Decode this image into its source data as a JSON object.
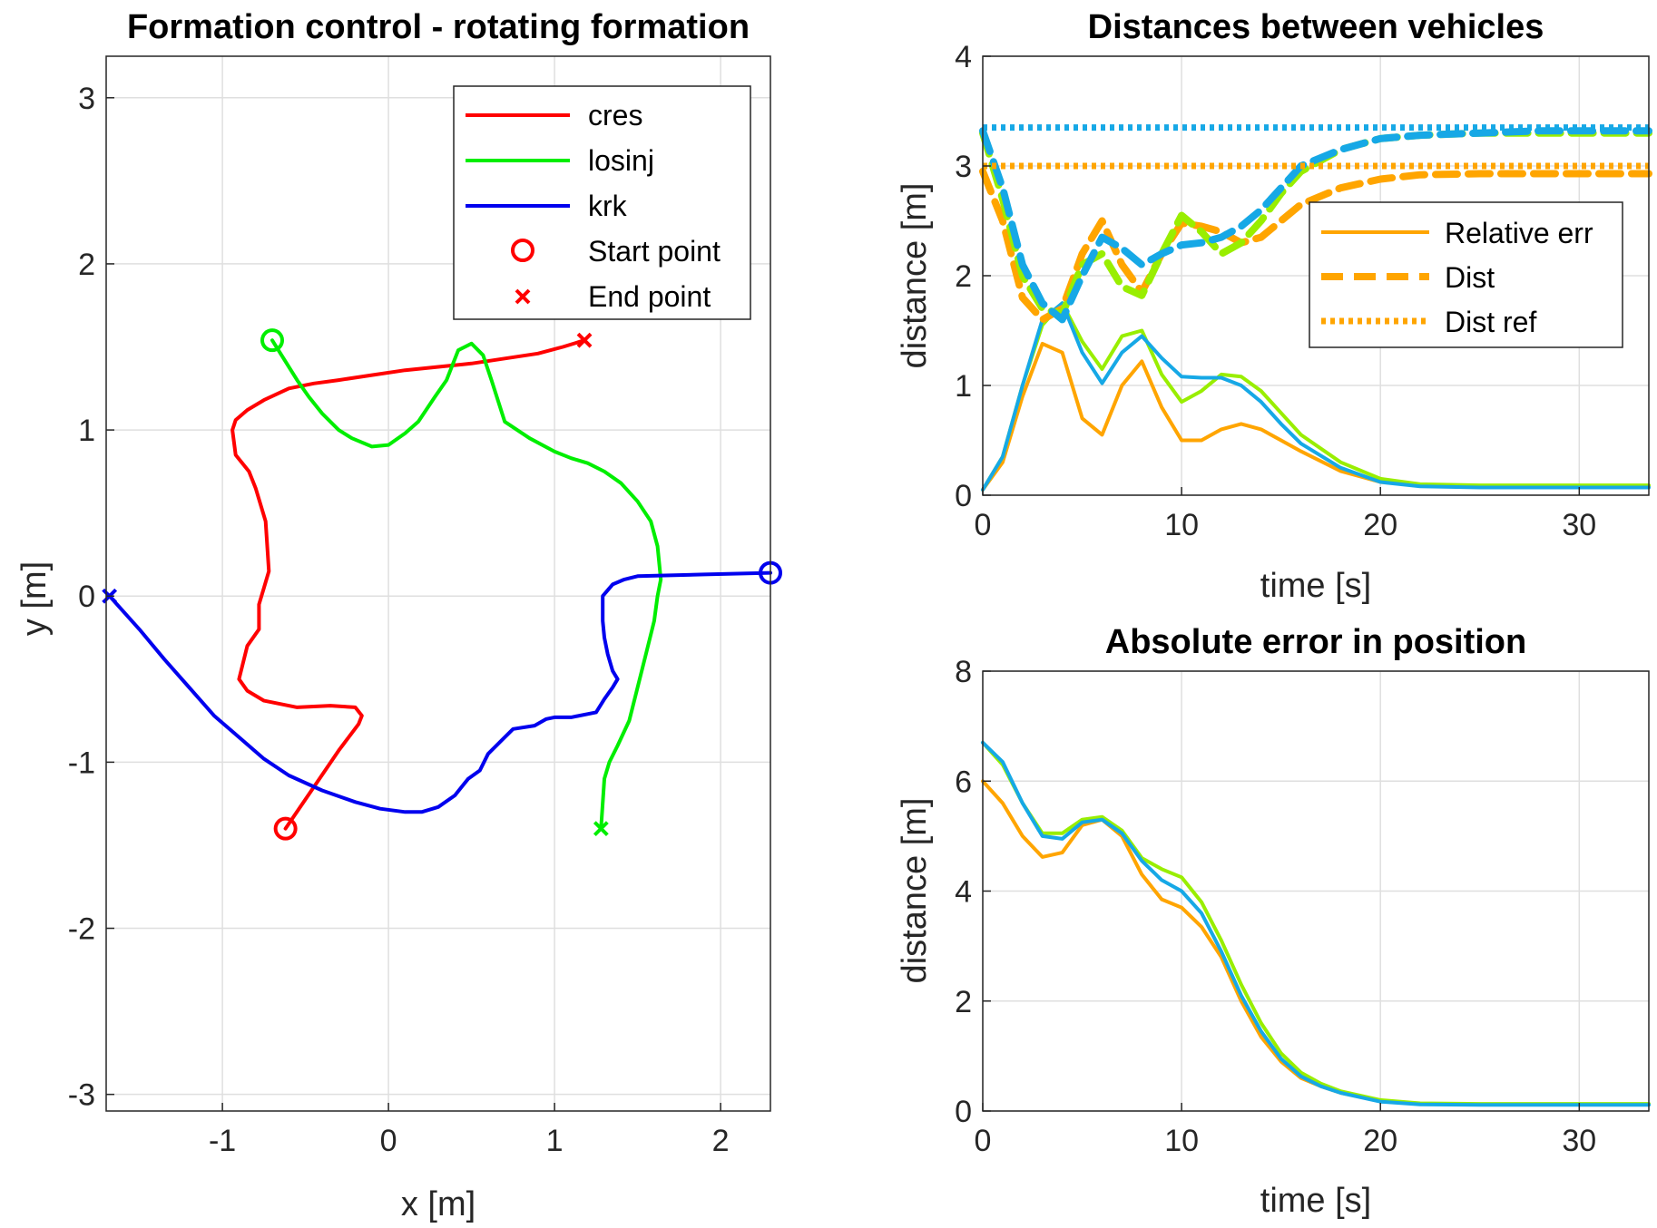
{
  "chart_data": [
    {
      "type": "line",
      "title": "Formation control - rotating formation",
      "xlabel": "x [m]",
      "ylabel": "y [m]",
      "xlim": [
        -1.7,
        2.3
      ],
      "ylim": [
        -3.1,
        3.25
      ],
      "xticks": [
        -1,
        0,
        1,
        2
      ],
      "yticks": [
        -3,
        -2,
        -1,
        0,
        1,
        2,
        3
      ],
      "grid": true,
      "legend": {
        "position": "top-right",
        "entries": [
          "cres",
          "losinj",
          "krk",
          "Start point",
          "End point"
        ]
      },
      "series": [
        {
          "name": "cres",
          "color": "#ff0000",
          "x": [
            -0.62,
            -0.45,
            -0.3,
            -0.18,
            -0.16,
            -0.2,
            -0.35,
            -0.55,
            -0.75,
            -0.85,
            -0.9,
            -0.85,
            -0.78,
            -0.78,
            -0.75,
            -0.72,
            -0.74,
            -0.8,
            -0.84,
            -0.92,
            -0.94,
            -0.92,
            -0.85,
            -0.75,
            -0.6,
            -0.45,
            -0.3,
            -0.1,
            0.1,
            0.3,
            0.5,
            0.7,
            0.9,
            1.05,
            1.18
          ],
          "y": [
            -1.4,
            -1.15,
            -0.93,
            -0.77,
            -0.72,
            -0.67,
            -0.66,
            -0.67,
            -0.63,
            -0.57,
            -0.5,
            -0.3,
            -0.2,
            -0.05,
            0.05,
            0.15,
            0.45,
            0.65,
            0.75,
            0.85,
            1.0,
            1.06,
            1.12,
            1.18,
            1.25,
            1.28,
            1.3,
            1.33,
            1.36,
            1.38,
            1.4,
            1.43,
            1.46,
            1.5,
            1.54
          ]
        },
        {
          "name": "losinj",
          "color": "#00ee00",
          "x": [
            -0.7,
            -0.55,
            -0.48,
            -0.4,
            -0.3,
            -0.22,
            -0.1,
            0.0,
            0.1,
            0.18,
            0.28,
            0.35,
            0.42,
            0.5,
            0.57,
            0.62,
            0.7,
            0.85,
            1.0,
            1.1,
            1.2,
            1.3,
            1.4,
            1.5,
            1.58,
            1.62,
            1.64,
            1.62,
            1.6,
            1.55,
            1.5,
            1.45,
            1.38,
            1.33,
            1.3,
            1.28
          ],
          "y": [
            1.54,
            1.3,
            1.2,
            1.1,
            1.0,
            0.95,
            0.9,
            0.91,
            0.98,
            1.05,
            1.2,
            1.3,
            1.48,
            1.52,
            1.45,
            1.3,
            1.05,
            0.95,
            0.87,
            0.83,
            0.8,
            0.75,
            0.68,
            0.57,
            0.45,
            0.3,
            0.1,
            0.0,
            -0.15,
            -0.35,
            -0.55,
            -0.75,
            -0.9,
            -1.0,
            -1.1,
            -1.4
          ]
        },
        {
          "name": "krk",
          "color": "#0000ee",
          "x": [
            2.3,
            1.9,
            1.5,
            1.42,
            1.35,
            1.29,
            1.29,
            1.3,
            1.32,
            1.35,
            1.38,
            1.35,
            1.3,
            1.25,
            1.1,
            1.0,
            0.95,
            0.88,
            0.75,
            0.7,
            0.6,
            0.55,
            0.48,
            0.4,
            0.3,
            0.2,
            0.1,
            -0.05,
            -0.2,
            -0.4,
            -0.6,
            -0.75,
            -0.9,
            -1.05,
            -1.2,
            -1.35,
            -1.5,
            -1.68
          ],
          "y": [
            0.14,
            0.13,
            0.12,
            0.1,
            0.07,
            0.0,
            -0.15,
            -0.25,
            -0.35,
            -0.45,
            -0.5,
            -0.55,
            -0.62,
            -0.7,
            -0.73,
            -0.73,
            -0.74,
            -0.78,
            -0.8,
            -0.85,
            -0.95,
            -1.05,
            -1.1,
            -1.2,
            -1.27,
            -1.3,
            -1.3,
            -1.28,
            -1.24,
            -1.17,
            -1.08,
            -0.98,
            -0.85,
            -0.72,
            -0.55,
            -0.38,
            -0.2,
            0.0
          ]
        }
      ],
      "markers": {
        "start": "circle",
        "end": "cross"
      }
    },
    {
      "type": "line",
      "title": "Distances between vehicles",
      "xlabel": "time [s]",
      "ylabel": "distance [m]",
      "xlim": [
        0,
        33.5
      ],
      "ylim": [
        0,
        4
      ],
      "xticks": [
        0,
        10,
        20,
        30
      ],
      "yticks": [
        0,
        1,
        2,
        3,
        4
      ],
      "grid": true,
      "legend": {
        "position": "top-right",
        "entries": [
          "Relative err",
          "Dist",
          "Dist ref"
        ]
      },
      "series": [
        {
          "name": "Relative err (orange)",
          "color": "#ffa500",
          "style": "solid",
          "x": [
            0,
            1,
            2,
            3,
            4,
            5,
            6,
            7,
            8,
            9,
            10,
            11,
            12,
            13,
            14,
            15,
            16,
            18,
            20,
            22,
            25,
            28,
            33.5
          ],
          "y": [
            0.05,
            0.3,
            0.9,
            1.38,
            1.3,
            0.7,
            0.55,
            1.0,
            1.22,
            0.8,
            0.5,
            0.5,
            0.6,
            0.65,
            0.6,
            0.5,
            0.4,
            0.22,
            0.12,
            0.09,
            0.08,
            0.08,
            0.08
          ]
        },
        {
          "name": "Relative err (lime)",
          "color": "#99ee00",
          "style": "solid",
          "x": [
            0,
            1,
            2,
            3,
            4,
            5,
            6,
            7,
            8,
            9,
            10,
            11,
            12,
            13,
            14,
            15,
            16,
            18,
            20,
            22,
            25,
            28,
            33.5
          ],
          "y": [
            0.05,
            0.35,
            1.0,
            1.55,
            1.75,
            1.4,
            1.15,
            1.45,
            1.5,
            1.1,
            0.85,
            0.95,
            1.1,
            1.08,
            0.95,
            0.75,
            0.55,
            0.3,
            0.15,
            0.1,
            0.09,
            0.09,
            0.09
          ]
        },
        {
          "name": "Relative err (sky)",
          "color": "#16a8e6",
          "style": "solid",
          "x": [
            0,
            1,
            2,
            3,
            4,
            5,
            6,
            7,
            8,
            9,
            10,
            11,
            12,
            13,
            14,
            15,
            16,
            18,
            20,
            22,
            25,
            28,
            33.5
          ],
          "y": [
            0.05,
            0.35,
            1.0,
            1.6,
            1.75,
            1.3,
            1.02,
            1.3,
            1.45,
            1.25,
            1.08,
            1.07,
            1.07,
            1.0,
            0.85,
            0.65,
            0.47,
            0.25,
            0.12,
            0.08,
            0.07,
            0.07,
            0.07
          ]
        },
        {
          "name": "Dist (orange)",
          "color": "#ffa500",
          "style": "dash",
          "x": [
            0,
            1,
            2,
            3,
            4,
            5,
            6,
            7,
            8,
            9,
            10,
            11,
            12,
            13,
            14,
            15,
            16,
            18,
            20,
            22,
            25,
            28,
            33.5
          ],
          "y": [
            2.95,
            2.5,
            1.8,
            1.6,
            1.7,
            2.2,
            2.5,
            2.1,
            1.85,
            2.2,
            2.48,
            2.45,
            2.4,
            2.3,
            2.35,
            2.5,
            2.65,
            2.8,
            2.88,
            2.92,
            2.93,
            2.93,
            2.93
          ]
        },
        {
          "name": "Dist (lime)",
          "color": "#99ee00",
          "style": "dash",
          "x": [
            0,
            1,
            2,
            3,
            4,
            5,
            6,
            7,
            8,
            9,
            10,
            11,
            12,
            13,
            14,
            15,
            16,
            18,
            20,
            22,
            25,
            28,
            33.5
          ],
          "y": [
            3.3,
            2.7,
            2.0,
            1.7,
            1.65,
            2.1,
            2.2,
            1.9,
            1.82,
            2.2,
            2.55,
            2.4,
            2.2,
            2.3,
            2.5,
            2.75,
            2.95,
            3.15,
            3.25,
            3.28,
            3.3,
            3.3,
            3.3
          ]
        },
        {
          "name": "Dist (sky)",
          "color": "#16a8e6",
          "style": "dash",
          "x": [
            0,
            1,
            2,
            3,
            4,
            5,
            6,
            7,
            8,
            9,
            10,
            11,
            12,
            13,
            14,
            15,
            16,
            18,
            20,
            22,
            25,
            28,
            33.5
          ],
          "y": [
            3.32,
            2.8,
            2.1,
            1.75,
            1.6,
            2.0,
            2.35,
            2.25,
            2.1,
            2.2,
            2.28,
            2.3,
            2.35,
            2.45,
            2.6,
            2.8,
            3.0,
            3.15,
            3.25,
            3.28,
            3.3,
            3.32,
            3.32
          ]
        },
        {
          "name": "Dist ref (orange)",
          "color": "#ffa500",
          "style": "dot",
          "x": [
            0,
            33.5
          ],
          "y": [
            3.0,
            3.0
          ]
        },
        {
          "name": "Dist ref (sky)",
          "color": "#16a8e6",
          "style": "dot",
          "x": [
            0,
            33.5
          ],
          "y": [
            3.35,
            3.35
          ]
        }
      ]
    },
    {
      "type": "line",
      "title": "Absolute error in position",
      "xlabel": "time [s]",
      "ylabel": "distance [m]",
      "xlim": [
        0,
        33.5
      ],
      "ylim": [
        0,
        8
      ],
      "xticks": [
        0,
        10,
        20,
        30
      ],
      "yticks": [
        0,
        2,
        4,
        6,
        8
      ],
      "grid": true,
      "series": [
        {
          "name": "orange",
          "color": "#ffa500",
          "style": "solid",
          "x": [
            0,
            1,
            2,
            3,
            4,
            5,
            6,
            7,
            8,
            9,
            10,
            11,
            12,
            13,
            14,
            15,
            16,
            17,
            18,
            20,
            22,
            25,
            28,
            33.5
          ],
          "y": [
            6.0,
            5.6,
            5.0,
            4.62,
            4.7,
            5.2,
            5.3,
            5.0,
            4.3,
            3.85,
            3.7,
            3.35,
            2.8,
            2.0,
            1.35,
            0.9,
            0.6,
            0.45,
            0.33,
            0.18,
            0.13,
            0.12,
            0.12,
            0.12
          ]
        },
        {
          "name": "lime",
          "color": "#99ee00",
          "style": "solid",
          "x": [
            0,
            1,
            2,
            3,
            4,
            5,
            6,
            7,
            8,
            9,
            10,
            11,
            12,
            13,
            14,
            15,
            16,
            17,
            18,
            20,
            22,
            25,
            28,
            33.5
          ],
          "y": [
            6.7,
            6.3,
            5.6,
            5.05,
            5.05,
            5.3,
            5.35,
            5.1,
            4.6,
            4.4,
            4.25,
            3.8,
            3.1,
            2.3,
            1.6,
            1.05,
            0.7,
            0.5,
            0.36,
            0.2,
            0.14,
            0.13,
            0.13,
            0.13
          ]
        },
        {
          "name": "sky",
          "color": "#16a8e6",
          "style": "solid",
          "x": [
            0,
            1,
            2,
            3,
            4,
            5,
            6,
            7,
            8,
            9,
            10,
            11,
            12,
            13,
            14,
            15,
            16,
            17,
            18,
            20,
            22,
            25,
            28,
            33.5
          ],
          "y": [
            6.7,
            6.35,
            5.6,
            5.0,
            4.95,
            5.25,
            5.3,
            5.05,
            4.55,
            4.2,
            4.0,
            3.6,
            2.9,
            2.1,
            1.45,
            0.95,
            0.63,
            0.45,
            0.33,
            0.17,
            0.12,
            0.11,
            0.11,
            0.11
          ]
        }
      ]
    }
  ]
}
